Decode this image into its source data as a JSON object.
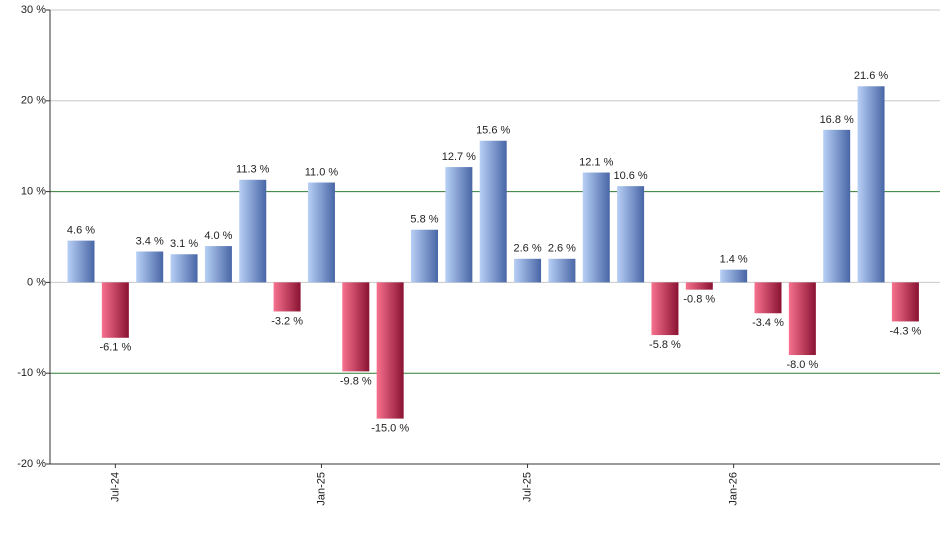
{
  "chart_data": {
    "type": "bar",
    "categories": [
      null,
      "Jul-24",
      null,
      null,
      null,
      null,
      null,
      "Jan-25",
      null,
      null,
      null,
      null,
      null,
      "Jul-25",
      null,
      null,
      null,
      null,
      null,
      "Jan-26",
      null,
      null,
      null,
      null,
      null
    ],
    "values": [
      4.6,
      -6.1,
      3.4,
      3.1,
      4.0,
      11.3,
      -3.2,
      11.0,
      -9.8,
      -15.0,
      5.8,
      12.7,
      15.6,
      2.6,
      2.6,
      12.1,
      10.6,
      -5.8,
      -0.8,
      1.4,
      -3.4,
      -8.0,
      16.8,
      21.6,
      -4.3
    ],
    "value_labels": [
      "4.6 %",
      "-6.1 %",
      "3.4 %",
      "3.1 %",
      "4.0 %",
      "11.3 %",
      "-3.2 %",
      "11.0 %",
      "-9.8 %",
      "-15.0 %",
      "5.8 %",
      "12.7 %",
      "15.6 %",
      "2.6 %",
      "2.6 %",
      "12.1 %",
      "10.6 %",
      "-5.8 %",
      "-0.8 %",
      "1.4 %",
      "-3.4 %",
      "-8.0 %",
      "16.8 %",
      "21.6 %",
      "-4.3 %"
    ],
    "ylim": [
      -20,
      30
    ],
    "yticks": [
      {
        "value": -20,
        "label": "-20 %"
      },
      {
        "value": -10,
        "label": "-10 %"
      },
      {
        "value": 0,
        "label": "0 %"
      },
      {
        "value": 10,
        "label": "10 %"
      },
      {
        "value": 20,
        "label": "20 %"
      },
      {
        "value": 30,
        "label": "30 %"
      }
    ],
    "grid": true,
    "grid_color": "#c8c8c8",
    "highlight_grid": {
      "color": "#2e7d32",
      "ticks": [
        1,
        3
      ]
    },
    "colors": {
      "positive": [
        "#b8d0f6",
        "#4866a6"
      ],
      "negative": [
        "#f7728e",
        "#8a1232"
      ]
    }
  }
}
